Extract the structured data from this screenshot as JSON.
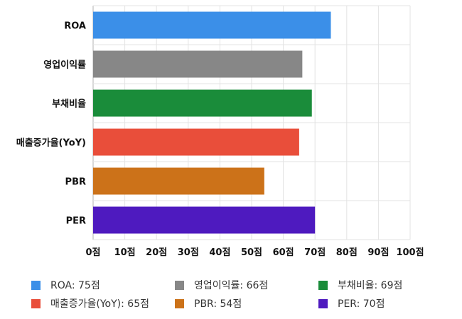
{
  "chart_data": {
    "type": "bar",
    "orientation": "horizontal",
    "categories": [
      "ROA",
      "영업이익률",
      "부채비율",
      "매출증가율(YoY)",
      "PBR",
      "PER"
    ],
    "values": [
      75,
      66,
      69,
      65,
      54,
      70
    ],
    "colors": [
      "#3b8fe8",
      "#878787",
      "#1a8c3a",
      "#e94e3a",
      "#cc7219",
      "#4e1abf"
    ],
    "xlim": [
      0,
      100
    ],
    "xticks": [
      "0점",
      "10점",
      "20점",
      "30점",
      "40점",
      "50점",
      "60점",
      "70점",
      "80점",
      "90점",
      "100점"
    ],
    "grid": true,
    "legend_position": "bottom",
    "legend": [
      "ROA: 75점",
      "영업이익률: 66점",
      "부채비율: 69점",
      "매출증가율(YoY): 65점",
      "PBR: 54점",
      "PER: 70점"
    ]
  }
}
